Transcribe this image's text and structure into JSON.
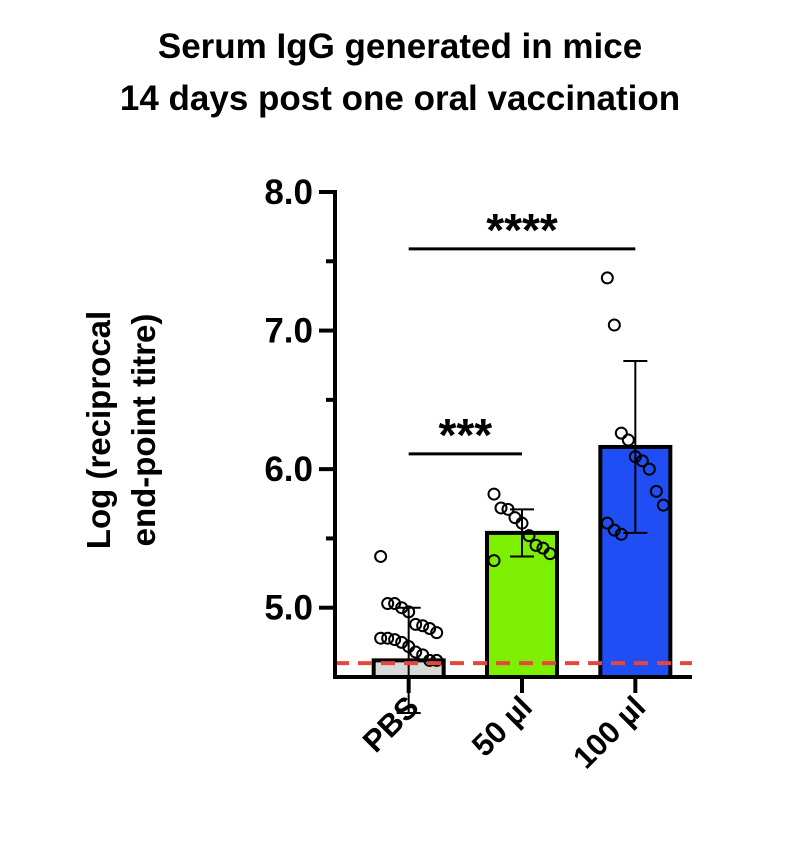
{
  "chart_data": {
    "type": "bar",
    "title": [
      "Serum IgG generated in mice",
      "14 days post one oral vaccination"
    ],
    "y_label": [
      "Log (reciprocal",
      "end-point titre)"
    ],
    "categories": [
      "PBS",
      "50 µl",
      "100 µl"
    ],
    "colors": [
      "#d9d9d9",
      "#7cf000",
      "#1f4ef5"
    ],
    "values": [
      4.62,
      5.54,
      6.16
    ],
    "errors": [
      0.38,
      0.17,
      0.62
    ],
    "points": [
      [
        5.37,
        5.03,
        5.03,
        5.0,
        4.97,
        4.88,
        4.87,
        4.85,
        4.82,
        4.78,
        4.78,
        4.77,
        4.75,
        4.72,
        4.68,
        4.66,
        4.62,
        4.62
      ],
      [
        5.82,
        5.72,
        5.71,
        5.65,
        5.61,
        5.52,
        5.45,
        5.43,
        5.39,
        5.34
      ],
      [
        7.38,
        7.04,
        6.26,
        6.21,
        6.09,
        6.06,
        6.0,
        5.84,
        5.74,
        5.61,
        5.56,
        5.53
      ]
    ],
    "reference_line": {
      "value": 4.6,
      "color": "#e8463c"
    },
    "significance": [
      {
        "from": 0,
        "to": 1,
        "y": 6.11,
        "label": "***"
      },
      {
        "from": 0,
        "to": 2,
        "y": 7.59,
        "label": "****"
      }
    ],
    "ylim": [
      4.5,
      8.0
    ],
    "yticks": [
      {
        "value": 5,
        "label": "5.0"
      },
      {
        "value": 6,
        "label": "6.0"
      },
      {
        "value": 7,
        "label": "7.0"
      },
      {
        "value": 8,
        "label": "8.0"
      }
    ],
    "minor_yticks": [
      5.5,
      6.5,
      7.5
    ]
  }
}
